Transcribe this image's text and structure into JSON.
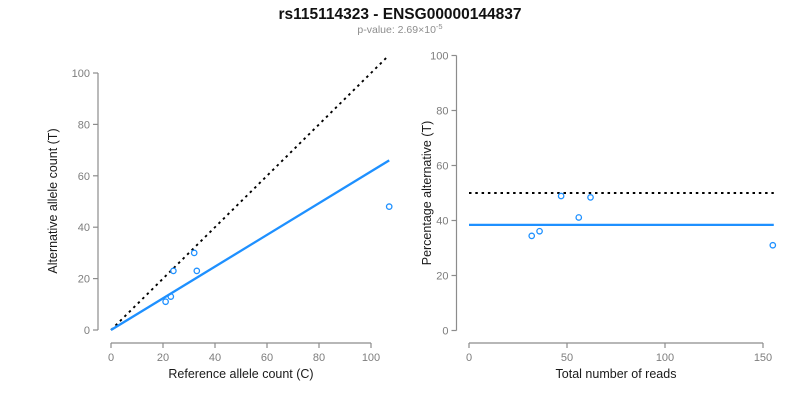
{
  "header": {
    "title": "rs115114323 - ENSG00000144837",
    "subtitle_base": "p-value: 2.69×10",
    "subtitle_exponent": "-5"
  },
  "colors": {
    "accent_blue": "#1E90FF",
    "dashed_black": "#000000",
    "axis_gray": "#8c8c8c",
    "tick_label_gray": "#7d7d7d",
    "axis_title_black": "#1a1a1a"
  },
  "chart_data": [
    {
      "type": "scatter",
      "name": "allele-counts",
      "xlabel": "Reference allele count (C)",
      "ylabel": "Alternative allele count (T)",
      "xlim": [
        0,
        107
      ],
      "ylim": [
        0,
        107
      ],
      "xticks": [
        0,
        20,
        40,
        60,
        80,
        100
      ],
      "yticks": [
        0,
        20,
        40,
        60,
        80,
        100
      ],
      "points": [
        [
          21,
          11
        ],
        [
          23,
          13
        ],
        [
          24,
          23
        ],
        [
          32,
          30
        ],
        [
          33,
          23
        ],
        [
          107,
          48
        ]
      ],
      "point_color": "#1E90FF",
      "lines": [
        {
          "name": "identity-line",
          "style": "dotted",
          "color": "#000000",
          "from": [
            0,
            0
          ],
          "to": [
            106.5,
            106.5
          ]
        },
        {
          "name": "regression-line",
          "style": "solid",
          "color": "#1E90FF",
          "from": [
            0,
            0
          ],
          "to": [
            107,
            66
          ]
        }
      ],
      "grid": false,
      "legend": false
    },
    {
      "type": "scatter",
      "name": "percentage-vs-reads",
      "xlabel": "Total number of reads",
      "ylabel": "Percentage alternative (T)",
      "xlim": [
        0,
        157
      ],
      "ylim": [
        0,
        100
      ],
      "xticks": [
        0,
        50,
        100,
        150
      ],
      "yticks": [
        0,
        20,
        40,
        60,
        80,
        100
      ],
      "points": [
        [
          32,
          34.4
        ],
        [
          36,
          36.1
        ],
        [
          47,
          48.9
        ],
        [
          56,
          41.1
        ],
        [
          62,
          48.4
        ],
        [
          155,
          31
        ]
      ],
      "point_color": "#1E90FF",
      "lines": [
        {
          "name": "expected-50pct-line",
          "style": "dotted",
          "color": "#000000",
          "from": [
            0,
            50
          ],
          "to": [
            155.5,
            50
          ]
        },
        {
          "name": "mean-percentage-line",
          "style": "solid",
          "color": "#1E90FF",
          "from": [
            0,
            38.4
          ],
          "to": [
            155.5,
            38.4
          ]
        }
      ],
      "grid": false,
      "legend": false
    }
  ]
}
